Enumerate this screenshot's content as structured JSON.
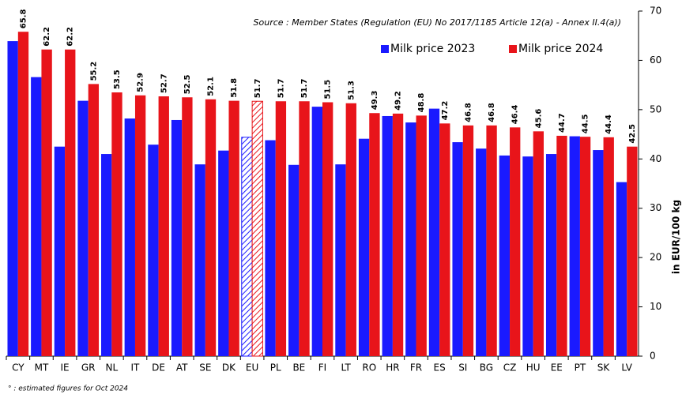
{
  "chart_data": {
    "type": "bar",
    "source": "Source : Member States (Regulation (EU) No 2017/1185 Article 12(a) - Annex II.4(a))",
    "y_axis_label": "in EUR/100 kg",
    "footnote": "° : estimated figures for Oct 2024",
    "categories": [
      "CY",
      "MT",
      "IE",
      "GR",
      "NL",
      "IT",
      "DE",
      "AT",
      "SE",
      "DK",
      "EU",
      "PL",
      "BE",
      "FI",
      "LT",
      "RO",
      "HR",
      "FR",
      "ES",
      "SI",
      "BG",
      "CZ",
      "HU",
      "EE",
      "PT",
      "SK",
      "LV"
    ],
    "series": [
      {
        "name": "Milk price 2023",
        "color": "#1a1aff",
        "values": [
          63.9,
          56.6,
          42.5,
          51.8,
          41.0,
          48.2,
          42.9,
          47.9,
          38.9,
          41.7,
          44.4,
          43.8,
          38.8,
          50.6,
          38.9,
          44.1,
          48.7,
          47.4,
          50.2,
          43.4,
          42.1,
          40.7,
          40.5,
          41.0,
          44.6,
          41.8,
          35.3
        ]
      },
      {
        "name": "Milk price 2024",
        "color": "#e8141a",
        "values": [
          65.8,
          62.2,
          62.2,
          55.2,
          53.5,
          52.9,
          52.7,
          52.5,
          52.1,
          51.8,
          51.7,
          51.7,
          51.7,
          51.5,
          51.3,
          49.3,
          49.2,
          48.8,
          47.2,
          46.8,
          46.8,
          46.4,
          45.6,
          44.7,
          44.5,
          44.4,
          42.5
        ]
      }
    ],
    "hatched_category": "EU",
    "data_labels_series": 1,
    "ylim": [
      0,
      70
    ],
    "yticks": [
      0,
      10,
      20,
      30,
      40,
      50,
      60,
      70
    ],
    "y_axis_side": "right",
    "legend": "upper right"
  }
}
